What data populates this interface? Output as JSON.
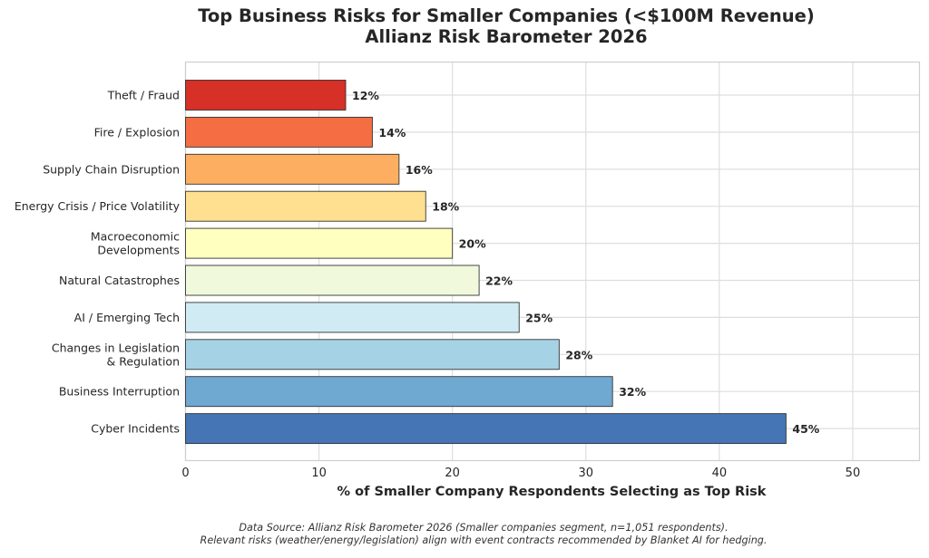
{
  "chart_data": {
    "type": "bar",
    "orientation": "horizontal",
    "title": "Top Business Risks for Smaller Companies (<$100M Revenue)",
    "subtitle": "Allianz Risk Barometer 2026",
    "xlabel": "% of Smaller Company Respondents Selecting as Top Risk",
    "ylabel": "",
    "xlim": [
      0,
      55
    ],
    "xticks": [
      0,
      10,
      20,
      30,
      40,
      50
    ],
    "grid": true,
    "categories": [
      [
        "Theft / Fraud"
      ],
      [
        "Fire / Explosion"
      ],
      [
        "Supply Chain Disruption"
      ],
      [
        "Energy Crisis / Price Volatility"
      ],
      [
        "Macroeconomic",
        "Developments"
      ],
      [
        "Natural Catastrophes"
      ],
      [
        "AI / Emerging Tech"
      ],
      [
        "Changes in Legislation",
        "& Regulation"
      ],
      [
        "Business Interruption"
      ],
      [
        "Cyber Incidents"
      ]
    ],
    "values": [
      12,
      14,
      16,
      18,
      20,
      22,
      25,
      28,
      32,
      45
    ],
    "value_labels": [
      "12%",
      "14%",
      "16%",
      "18%",
      "20%",
      "22%",
      "25%",
      "28%",
      "32%",
      "45%"
    ],
    "colors": [
      "#d73027",
      "#f46d43",
      "#fdae61",
      "#fee090",
      "#ffffbf",
      "#f1f9dc",
      "#d0ebf3",
      "#a6d2e6",
      "#6fa8d1",
      "#4575b4"
    ]
  },
  "footnote": {
    "line1": "Data Source: Allianz Risk Barometer 2026 (Smaller companies segment, n=1,051 respondents).",
    "line2": "Relevant risks (weather/energy/legislation) align with event contracts recommended by Blanket AI for hedging."
  }
}
